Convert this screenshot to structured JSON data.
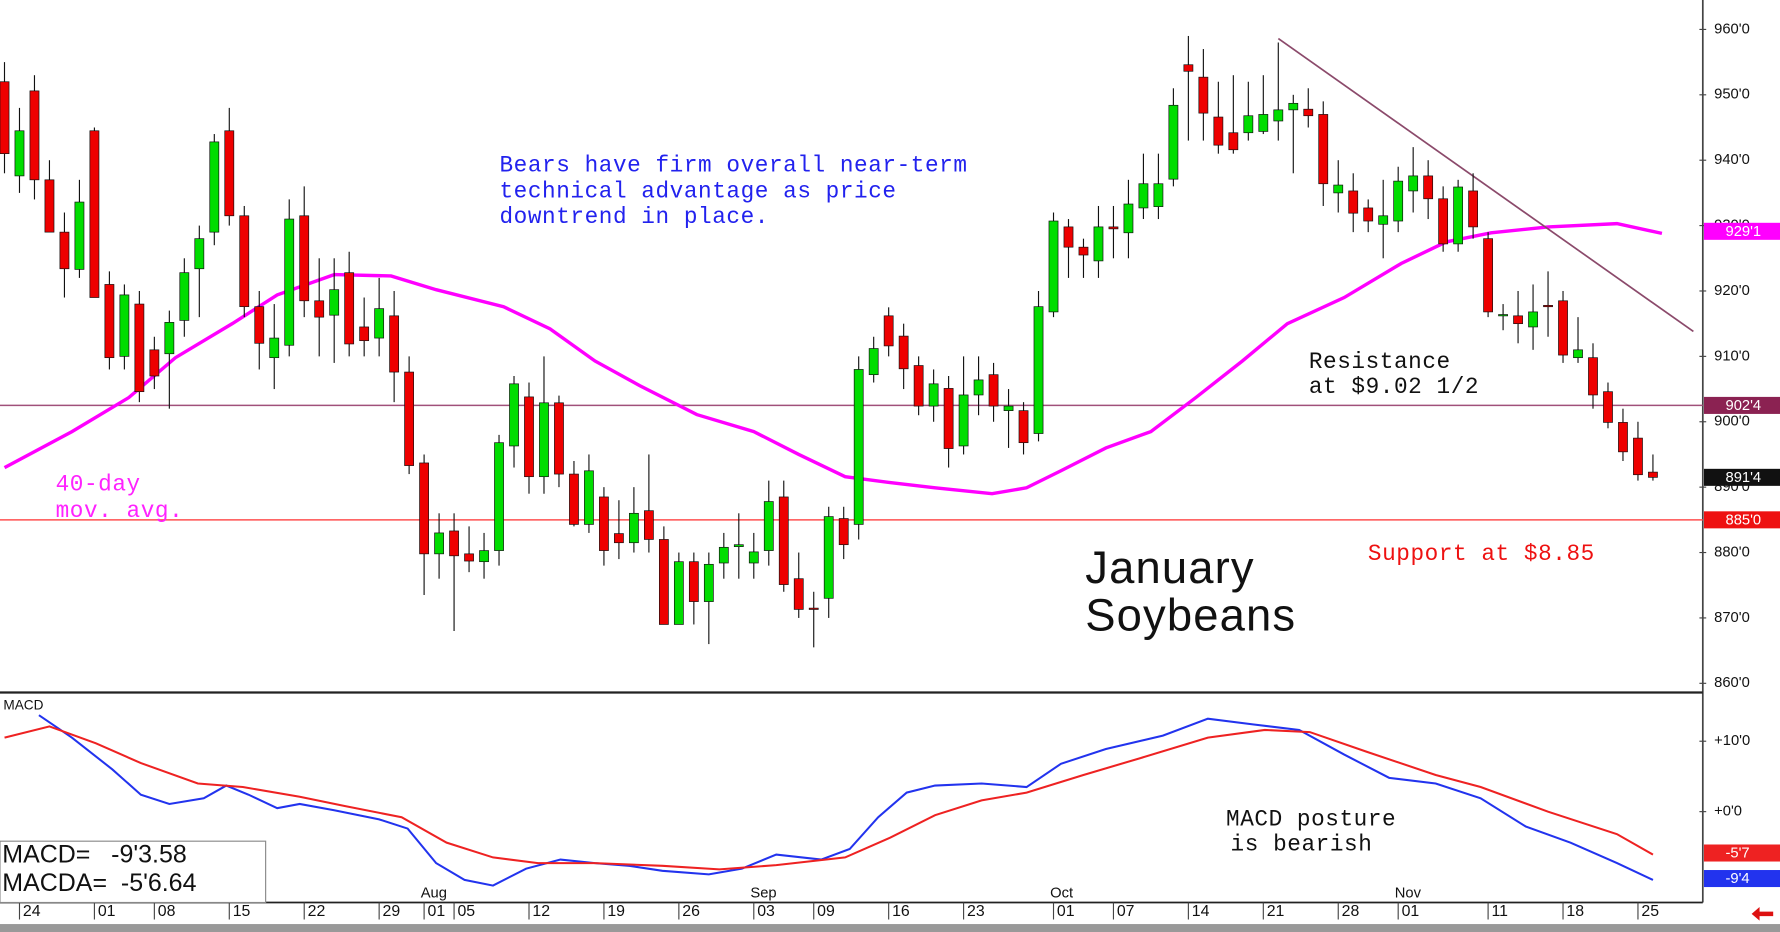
{
  "chart_data": [
    {
      "type": "candlestick",
      "categories": [
        null,
        "24",
        null,
        null,
        null,
        null,
        "01",
        null,
        null,
        null,
        "08",
        null,
        null,
        null,
        null,
        "15",
        null,
        null,
        null,
        null,
        "22",
        null,
        null,
        null,
        null,
        "29",
        null,
        null,
        "01",
        null,
        "05",
        null,
        null,
        null,
        null,
        "12",
        null,
        null,
        null,
        null,
        "19",
        null,
        null,
        null,
        null,
        "26",
        null,
        null,
        null,
        null,
        "03",
        null,
        null,
        null,
        "09",
        null,
        null,
        null,
        null,
        "16",
        null,
        null,
        null,
        null,
        "23",
        null,
        null,
        null,
        null,
        null,
        "01",
        null,
        null,
        null,
        "07",
        null,
        null,
        null,
        null,
        "14",
        null,
        null,
        null,
        null,
        "21",
        null,
        null,
        null,
        null,
        "28",
        null,
        null,
        null,
        "01",
        null,
        null,
        null,
        null,
        null,
        "11",
        null,
        null,
        null,
        null,
        "18",
        null,
        null,
        null,
        null,
        "25",
        null
      ],
      "months": [
        null,
        null,
        null,
        null,
        null,
        null,
        null,
        null,
        null,
        null,
        null,
        null,
        null,
        null,
        null,
        null,
        null,
        null,
        null,
        null,
        null,
        null,
        null,
        null,
        null,
        null,
        null,
        null,
        "Aug",
        null,
        null,
        null,
        null,
        null,
        null,
        null,
        null,
        null,
        null,
        null,
        null,
        null,
        null,
        null,
        null,
        null,
        null,
        null,
        null,
        null,
        "Sep",
        null,
        null,
        null,
        null,
        null,
        null,
        null,
        null,
        null,
        null,
        null,
        null,
        null,
        null,
        null,
        null,
        null,
        null,
        null,
        "Oct",
        null,
        null,
        null,
        null,
        null,
        null,
        null,
        null,
        null,
        null,
        null,
        null,
        null,
        null,
        null,
        null,
        null,
        null,
        null,
        null,
        null,
        null,
        "Nov",
        null,
        null,
        null,
        null,
        null,
        null,
        null,
        null,
        null,
        null,
        null,
        null,
        null,
        null,
        null,
        null,
        null
      ],
      "open": [
        952,
        937.6,
        950.6,
        937,
        929,
        923.3,
        944.5,
        921,
        910,
        918,
        911,
        910.4,
        915.5,
        923.4,
        929,
        944.5,
        931.5,
        917.6,
        909.8,
        911.7,
        931.5,
        918.5,
        916.3,
        922.8,
        914.5,
        912.8,
        916.2,
        907.6,
        893.7,
        879.8,
        883.3,
        879.8,
        878.6,
        880.3,
        896.3,
        903.8,
        891.6,
        902.9,
        892,
        884.3,
        888.5,
        882.9,
        881.5,
        886.4,
        882,
        869,
        878.6,
        872.5,
        878.4,
        880.9,
        878.4,
        880.3,
        888.5,
        876,
        871.5,
        873,
        885.2,
        884.3,
        907.2,
        916.2,
        913.1,
        908.6,
        902.4,
        905.1,
        896.3,
        904.1,
        907.2,
        901.7,
        901.7,
        898.2,
        916.8,
        929.8,
        926.7,
        924.6,
        929.8,
        928.9,
        932.7,
        932.9,
        937.1,
        954.6,
        952.7,
        946.6,
        944.2,
        944.2,
        944.4,
        946,
        947.7,
        947.8,
        947,
        935,
        935.3,
        932.7,
        930.2,
        930.7,
        935.3,
        937.6,
        934.1,
        927.2,
        935.3,
        928,
        916.2,
        916.2,
        914.5,
        917.8,
        918.5,
        909.8,
        909.8,
        904.6,
        899.9,
        897.5,
        892.3
      ],
      "high": [
        955,
        948,
        953,
        940,
        932,
        937,
        945,
        923,
        921,
        920,
        913,
        917,
        925,
        930,
        944,
        948,
        933,
        920,
        918,
        934,
        936,
        925,
        925,
        926,
        919,
        922,
        920,
        910,
        895,
        886,
        886,
        884,
        883,
        898,
        907,
        906,
        910,
        904,
        894,
        895,
        890,
        888,
        890,
        895,
        884,
        880,
        880,
        880,
        883,
        886,
        883,
        891,
        891,
        880,
        874,
        887,
        887,
        910,
        913,
        917.5,
        915,
        910,
        908,
        907,
        910,
        910,
        909,
        905,
        903,
        920,
        932,
        931,
        928,
        933,
        933,
        937,
        941,
        941,
        951,
        959,
        957,
        952,
        953,
        952,
        953,
        958,
        950,
        951,
        949,
        940,
        938,
        934,
        937,
        939,
        942,
        940,
        936,
        937,
        938,
        929,
        918,
        920,
        921,
        923,
        920,
        916,
        912,
        906,
        902,
        900,
        895
      ],
      "low": [
        938,
        935,
        934,
        929,
        919,
        922,
        919,
        908,
        908,
        903,
        905,
        902,
        913,
        916,
        927,
        930,
        916,
        908,
        905,
        910,
        916,
        910,
        909,
        910,
        910,
        910,
        903,
        892,
        873.5,
        876,
        868,
        877,
        876,
        878,
        893,
        889,
        889,
        890,
        884,
        883,
        878,
        879,
        880,
        880,
        869,
        869,
        869,
        866,
        876,
        876,
        876,
        878,
        874,
        870,
        865.5,
        870,
        879,
        882,
        906,
        910,
        905,
        901,
        900,
        893,
        895,
        901,
        900,
        896,
        895,
        897,
        916,
        922,
        922,
        922,
        925,
        925,
        931,
        931,
        936,
        943,
        943,
        941,
        941,
        943,
        944,
        943,
        938,
        945,
        933,
        932,
        929,
        929,
        925,
        929,
        932,
        931,
        926,
        926,
        928,
        916,
        914,
        912,
        911,
        913,
        909,
        909,
        902,
        899,
        894,
        891,
        891
      ],
      "close": [
        941,
        944.5,
        937,
        929,
        923.4,
        933.6,
        919,
        909.8,
        919.4,
        904.6,
        907,
        915.2,
        922.8,
        928,
        942.8,
        931.5,
        917.6,
        912,
        912.8,
        931,
        918.5,
        916,
        920.2,
        911.9,
        912.4,
        917.3,
        907.6,
        893.3,
        879.8,
        883,
        879.5,
        878.7,
        880.3,
        896.8,
        905.8,
        891.6,
        902.9,
        892,
        884.3,
        892.5,
        880.3,
        881.5,
        886,
        882,
        869,
        878.6,
        872.5,
        878.2,
        880.8,
        881.2,
        880.1,
        887.8,
        875.1,
        871.3,
        871.3,
        885.5,
        881.2,
        908,
        911.2,
        911.6,
        908.1,
        902.4,
        905.8,
        895.9,
        904.1,
        906.4,
        902.4,
        902.4,
        896.8,
        917.6,
        930.7,
        926.7,
        925.5,
        929.8,
        929.5,
        933.3,
        936.4,
        936.4,
        948.4,
        953.6,
        947.2,
        942.3,
        941.6,
        946.8,
        947,
        947.7,
        948.7,
        946.8,
        936.4,
        936.2,
        931.9,
        930.7,
        931.5,
        936.8,
        937.6,
        934.1,
        927.2,
        935.9,
        929.8,
        916.8,
        916.4,
        915,
        916.8,
        917.6,
        910.2,
        911,
        904.1,
        899.9,
        895.4,
        891.9,
        891.5
      ],
      "up_color": "#00dd00",
      "down_color": "#ee0000",
      "xlim": [
        -0.3,
        113.1
      ],
      "ylim": [
        858.6,
        964.5
      ],
      "yticks": [
        {
          "value": 860,
          "label": "860'0"
        },
        {
          "value": 870,
          "label": "870'0"
        },
        {
          "value": 880,
          "label": "880'0"
        },
        {
          "value": 890,
          "label": "890'0"
        },
        {
          "value": 900,
          "label": "900'0"
        },
        {
          "value": 910,
          "label": "910'0"
        },
        {
          "value": 920,
          "label": "920'0"
        },
        {
          "value": 930,
          "label": "930'0"
        },
        {
          "value": 940,
          "label": "940'0"
        },
        {
          "value": 950,
          "label": "950'0"
        },
        {
          "value": 960,
          "label": "960'0"
        }
      ],
      "moving_average": {
        "color": "#ff00ff",
        "x": [
          0,
          4.5,
          8.3,
          11.4,
          15.2,
          18.2,
          22,
          25.8,
          28.8,
          33.3,
          36.4,
          39.4,
          42.4,
          46.2,
          50,
          53,
          56.1,
          59.1,
          62.1,
          65.9,
          68.2,
          70.5,
          73.5,
          76.5,
          79.5,
          82.6,
          85.6,
          89.4,
          93.2,
          96.2,
          99.2,
          103,
          107.6,
          110.6
        ],
        "values": [
          893,
          898.5,
          903.7,
          909.8,
          915,
          919.4,
          922.5,
          922.3,
          920.2,
          917.6,
          914.2,
          909.3,
          905.5,
          901.1,
          898.5,
          895,
          891.6,
          890.7,
          889.9,
          889,
          889.9,
          892.5,
          896,
          898.5,
          903.7,
          909.3,
          915,
          919,
          924.2,
          927.5,
          928.9,
          929.8,
          930.3,
          928.8
        ]
      },
      "trendline": {
        "color": "#8b4a6b",
        "x": [
          85,
          112.7
        ],
        "values": [
          958.6,
          913.8
        ]
      },
      "lines": [
        {
          "value": 902.5,
          "color": "#a0507a"
        },
        {
          "value": 885,
          "color": "#ff5050"
        }
      ],
      "price_boxes": [
        {
          "value": 929.125,
          "label": "929'1",
          "color": "#ff00ff"
        },
        {
          "value": 902.5,
          "label": "902'4",
          "color": "#8b2252"
        },
        {
          "value": 891.5,
          "label": "891'4",
          "color": "#111111"
        },
        {
          "value": 885,
          "label": "885'0",
          "color": "#ee1111"
        }
      ],
      "comment": [
        "Bears have firm overall near-term",
        "technical advantage as price",
        "downtrend in place."
      ],
      "ma_label": [
        "40-day",
        "mov. avg."
      ],
      "resistance_label": [
        "Resistance",
        "at $9.02 1/2"
      ],
      "support_label": "Support at $8.85",
      "title": [
        "January",
        "Soybeans"
      ]
    },
    {
      "type": "line",
      "title": "MACD",
      "xlim": [
        -0.3,
        113.1
      ],
      "ylim": [
        -12.9,
        16.6
      ],
      "yticks": [
        {
          "value": 10,
          "label": "+10'0"
        },
        {
          "value": 0,
          "label": "+0'0"
        }
      ],
      "series": [
        {
          "name": "MACD",
          "color": "#2233ee",
          "x": [
            2.3,
            4.5,
            7.2,
            9.1,
            11,
            13.3,
            14.8,
            16.3,
            18.2,
            19.7,
            22,
            25,
            26.9,
            28.8,
            30.7,
            32.6,
            34.8,
            37.1,
            39.4,
            41.7,
            43.9,
            47,
            49.2,
            51.5,
            54.5,
            56.4,
            58.3,
            60.2,
            62.1,
            65.2,
            68.2,
            70.5,
            73.5,
            77.3,
            80.3,
            83.3,
            86.4,
            89.4,
            92.4,
            95.5,
            98.5,
            101.5,
            104.5,
            107.6,
            110
          ],
          "values": [
            13.7,
            10.5,
            6,
            2.4,
            1.1,
            1.9,
            3.7,
            2.4,
            0.5,
            1.1,
            0.2,
            -1.1,
            -2.4,
            -7.3,
            -9.7,
            -10.5,
            -8.1,
            -6.8,
            -7.3,
            -7.7,
            -8.4,
            -8.9,
            -8.1,
            -6.1,
            -6.8,
            -5.3,
            -0.8,
            2.7,
            3.7,
            4,
            3.5,
            6.8,
            8.9,
            10.8,
            13.2,
            12.4,
            11.6,
            8.1,
            4.8,
            4,
            1.9,
            -2.1,
            -4.4,
            -7.3,
            -9.7
          ]
        },
        {
          "name": "MACDA",
          "color": "#ee2222",
          "x": [
            0,
            3,
            6.1,
            9.1,
            12.9,
            15.9,
            19.7,
            22.7,
            26.5,
            29.5,
            32.6,
            35.6,
            39.4,
            43.9,
            47.7,
            51.5,
            56.1,
            59.1,
            62.1,
            65.2,
            68.2,
            72,
            75.8,
            80.3,
            84.1,
            87.1,
            90.9,
            95.5,
            98.5,
            103,
            107.6,
            110
          ],
          "values": [
            10.5,
            12.1,
            9.7,
            6.9,
            4,
            3.5,
            2.1,
            0.8,
            -0.8,
            -4.4,
            -6.5,
            -7.3,
            -7.3,
            -7.7,
            -8.2,
            -7.6,
            -6.5,
            -3.7,
            -0.5,
            1.6,
            2.7,
            5.2,
            7.6,
            10.5,
            11.6,
            11.3,
            8.5,
            5.2,
            3.5,
            0,
            -3.2,
            -6.1
          ]
        }
      ],
      "value_boxes": [
        {
          "value": -5.875,
          "label": "-5'7",
          "color": "#ee2222"
        },
        {
          "value": -9.5,
          "label": "-9'4",
          "color": "#2233ee"
        }
      ],
      "readout": [
        "MACD=   -9'3.58",
        "MACDA=  -5'6.64"
      ],
      "comment": [
        "MACD posture",
        "is bearish"
      ]
    }
  ]
}
